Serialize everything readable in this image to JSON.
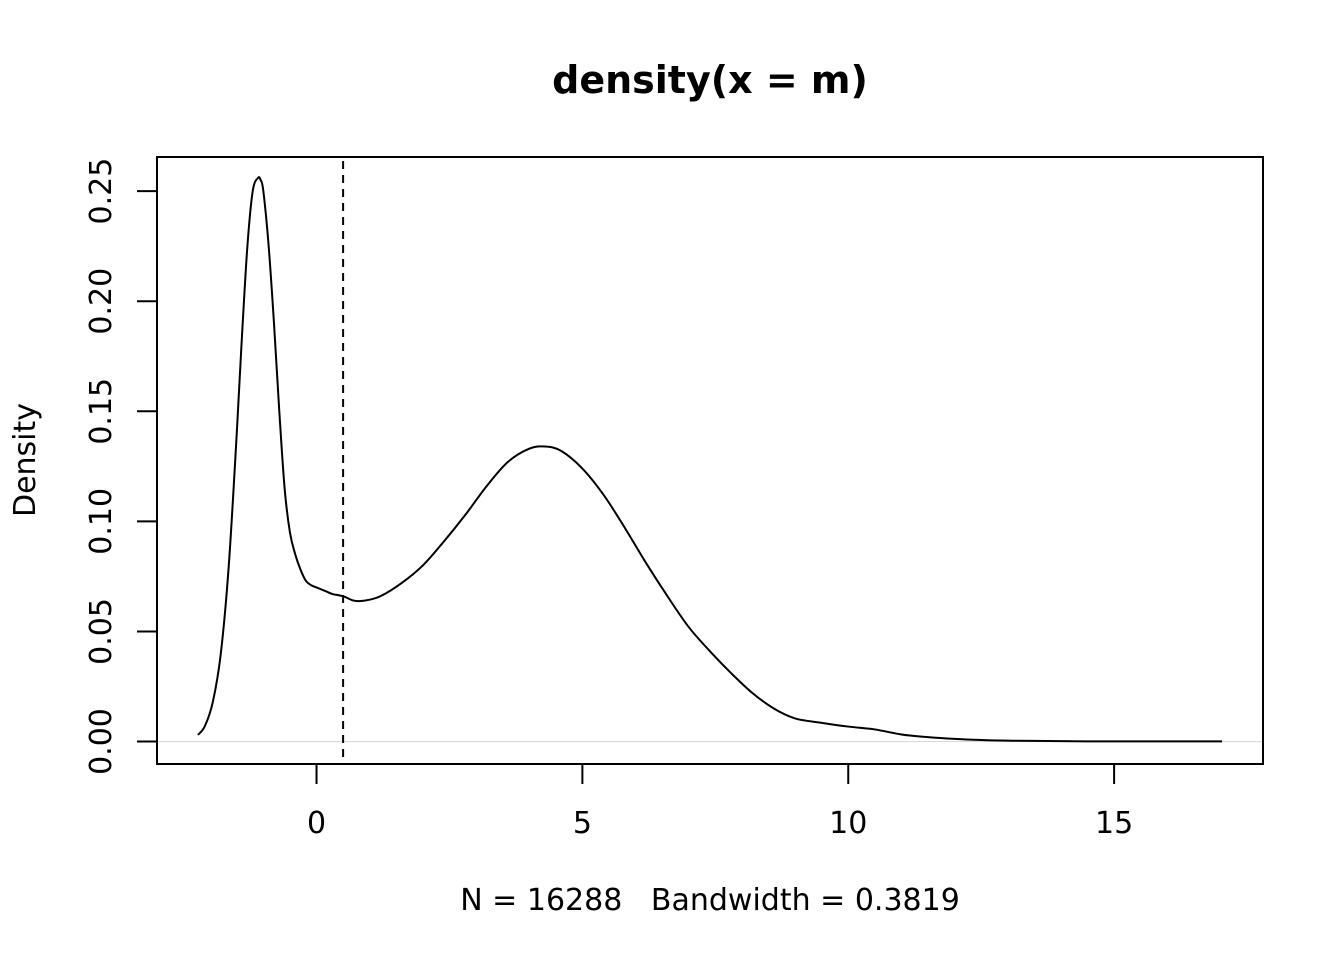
{
  "chart_data": {
    "type": "line",
    "title": "density(x = m)",
    "xlabel": "N = 16288   Bandwidth = 0.3819",
    "ylabel": "Density",
    "xlim": [
      -3,
      17.8
    ],
    "ylim": [
      -0.0102,
      0.2655
    ],
    "x_ticks": [
      0,
      5,
      10,
      15
    ],
    "x_tick_labels": [
      "0",
      "5",
      "10",
      "15"
    ],
    "y_ticks": [
      0,
      0.05,
      0.1,
      0.15,
      0.2,
      0.25
    ],
    "y_tick_labels": [
      "0.00",
      "0.05",
      "0.10",
      "0.15",
      "0.20",
      "0.25"
    ],
    "grid": false,
    "legend": "none",
    "series": [
      {
        "x": [
          -2.23,
          -2.1,
          -1.95,
          -1.8,
          -1.65,
          -1.5,
          -1.4,
          -1.3,
          -1.2,
          -1.1,
          -1.05,
          -1.0,
          -0.9,
          -0.8,
          -0.7,
          -0.6,
          -0.5,
          -0.4,
          -0.3,
          -0.2,
          -0.1,
          0.0,
          0.1,
          0.2,
          0.3,
          0.5,
          0.7,
          0.9,
          1.2,
          1.6,
          2.0,
          2.4,
          2.8,
          3.2,
          3.6,
          4.0,
          4.3,
          4.6,
          5.0,
          5.4,
          5.8,
          6.2,
          6.6,
          7.0,
          7.4,
          7.8,
          8.2,
          8.6,
          9.0,
          9.5,
          10.0,
          10.5,
          11.0,
          11.5,
          12.0,
          12.5,
          13.0,
          13.5,
          14.0,
          14.5,
          15.0,
          15.5,
          16.0,
          16.5,
          17.03
        ],
        "y": [
          0.003,
          0.007,
          0.018,
          0.04,
          0.08,
          0.14,
          0.185,
          0.225,
          0.25,
          0.256,
          0.255,
          0.25,
          0.225,
          0.19,
          0.15,
          0.115,
          0.095,
          0.085,
          0.078,
          0.073,
          0.071,
          0.07,
          0.069,
          0.068,
          0.067,
          0.066,
          0.064,
          0.064,
          0.066,
          0.072,
          0.08,
          0.091,
          0.103,
          0.116,
          0.127,
          0.133,
          0.134,
          0.132,
          0.124,
          0.112,
          0.097,
          0.081,
          0.066,
          0.052,
          0.041,
          0.031,
          0.022,
          0.015,
          0.0105,
          0.0085,
          0.0068,
          0.0055,
          0.0032,
          0.002,
          0.0012,
          0.0007,
          0.0004,
          0.0003,
          0.0002,
          0.0001,
          0.0001,
          0.0001,
          0.0001,
          0.0001,
          0.0001
        ],
        "color": "#000000"
      }
    ],
    "reference_line": {
      "orientation": "vertical",
      "x": 0.5,
      "style": "dashed",
      "color": "#000000"
    },
    "baseline": {
      "y": 0,
      "color": "#d9d9d9"
    }
  }
}
